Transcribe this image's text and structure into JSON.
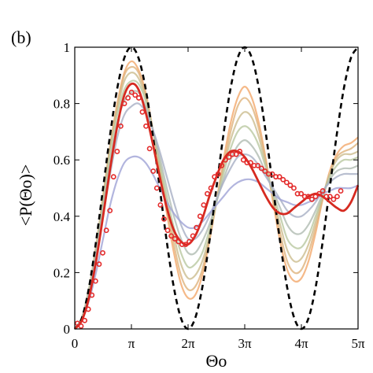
{
  "chart_data": {
    "type": "line",
    "panel_label": "(b)",
    "xlabel": "Θo",
    "ylabel": "<P(Θo)>",
    "xlim": [
      0,
      15.708
    ],
    "ylim": [
      0,
      1
    ],
    "x_ticks": [
      {
        "value": 0,
        "label": "0"
      },
      {
        "value": 3.1416,
        "label": "π"
      },
      {
        "value": 6.2832,
        "label": "2π"
      },
      {
        "value": 9.4248,
        "label": "3π"
      },
      {
        "value": 12.566,
        "label": "4π"
      },
      {
        "value": 15.708,
        "label": "5π"
      }
    ],
    "y_ticks": [
      {
        "value": 0,
        "label": "0"
      },
      {
        "value": 0.2,
        "label": "0.2"
      },
      {
        "value": 0.4,
        "label": "0.4"
      },
      {
        "value": 0.6,
        "label": "0.6"
      },
      {
        "value": 0.8,
        "label": "0.8"
      },
      {
        "value": 1,
        "label": "1"
      }
    ],
    "grid": false,
    "colors": {
      "dashed": "#000000",
      "highlight": "#d62a20",
      "points": "#e32b2b",
      "family_warm": "#f2a86a",
      "family_mid": "#b9c8a0",
      "family_cool": "#9fa3d6"
    },
    "series": [
      {
        "style": "dashed",
        "x": [
          0,
          0.3927,
          0.7854,
          1.1781,
          1.5708,
          1.9635,
          2.3562,
          2.7489,
          3.1416,
          3.5343,
          3.927,
          4.3197,
          4.7124,
          5.1051,
          5.4978,
          5.8905,
          6.2832,
          6.6759,
          7.0686,
          7.4613,
          7.854,
          8.2467,
          8.6394,
          9.0321,
          9.4248,
          9.8175,
          10.2102,
          10.6029,
          10.9956,
          11.3883,
          11.781,
          12.1737,
          12.566,
          12.9591,
          13.3518,
          13.7445,
          14.1372,
          14.5299,
          14.9226,
          15.3153,
          15.708
        ],
        "y": [
          0,
          0.038,
          0.146,
          0.309,
          0.5,
          0.691,
          0.854,
          0.962,
          1,
          0.962,
          0.854,
          0.691,
          0.5,
          0.309,
          0.146,
          0.038,
          0,
          0.038,
          0.146,
          0.309,
          0.5,
          0.691,
          0.854,
          0.962,
          1,
          0.962,
          0.854,
          0.691,
          0.5,
          0.309,
          0.146,
          0.038,
          0,
          0.038,
          0.146,
          0.309,
          0.5,
          0.691,
          0.854,
          0.962,
          1
        ]
      },
      {
        "style": "band",
        "x": [
          0,
          0.3927,
          0.7854,
          1.1781,
          1.5708,
          1.9635,
          2.3562,
          2.7489,
          3.1416,
          3.5343,
          3.927,
          4.3197,
          4.7124,
          5.1051,
          5.4978,
          5.8905,
          6.2832,
          6.6759,
          7.0686,
          7.4613,
          7.854,
          8.2467,
          8.6394,
          9.0321,
          9.4248,
          9.8175,
          10.2102,
          10.6029,
          10.9956,
          11.3883,
          11.781,
          12.1737,
          12.566,
          12.9591,
          13.3518,
          13.7445,
          14.1372,
          14.5299,
          14.9226,
          15.3153,
          15.708
        ],
        "y": [
          0,
          0.04,
          0.14,
          0.29,
          0.47,
          0.65,
          0.8,
          0.91,
          0.95,
          0.92,
          0.84,
          0.71,
          0.56,
          0.41,
          0.27,
          0.16,
          0.11,
          0.12,
          0.19,
          0.31,
          0.45,
          0.6,
          0.73,
          0.82,
          0.86,
          0.82,
          0.73,
          0.6,
          0.45,
          0.31,
          0.21,
          0.17,
          0.18,
          0.24,
          0.34,
          0.46,
          0.56,
          0.62,
          0.65,
          0.66,
          0.68
        ]
      },
      {
        "style": "band",
        "x": [
          0,
          0.3927,
          0.7854,
          1.1781,
          1.5708,
          1.9635,
          2.3562,
          2.7489,
          3.1416,
          3.5343,
          3.927,
          4.3197,
          4.7124,
          5.1051,
          5.4978,
          5.8905,
          6.2832,
          6.6759,
          7.0686,
          7.4613,
          7.854,
          8.2467,
          8.6394,
          9.0321,
          9.4248,
          9.8175,
          10.2102,
          10.6029,
          10.9956,
          11.3883,
          11.781,
          12.1737,
          12.566,
          12.9591,
          13.3518,
          13.7445,
          14.1372,
          14.5299,
          14.9226,
          15.3153,
          15.708
        ],
        "y": [
          0,
          0.04,
          0.14,
          0.29,
          0.47,
          0.65,
          0.79,
          0.9,
          0.93,
          0.91,
          0.83,
          0.71,
          0.57,
          0.43,
          0.3,
          0.19,
          0.14,
          0.15,
          0.21,
          0.32,
          0.45,
          0.58,
          0.7,
          0.79,
          0.82,
          0.79,
          0.71,
          0.59,
          0.46,
          0.34,
          0.24,
          0.2,
          0.21,
          0.27,
          0.36,
          0.46,
          0.55,
          0.61,
          0.63,
          0.64,
          0.66
        ]
      },
      {
        "style": "band",
        "x": [
          0,
          0.3927,
          0.7854,
          1.1781,
          1.5708,
          1.9635,
          2.3562,
          2.7489,
          3.1416,
          3.5343,
          3.927,
          4.3197,
          4.7124,
          5.1051,
          5.4978,
          5.8905,
          6.2832,
          6.6759,
          7.0686,
          7.4613,
          7.854,
          8.2467,
          8.6394,
          9.0321,
          9.4248,
          9.8175,
          10.2102,
          10.6029,
          10.9956,
          11.3883,
          11.781,
          12.1737,
          12.566,
          12.9591,
          13.3518,
          13.7445,
          14.1372,
          14.5299,
          14.9226,
          15.3153,
          15.708
        ],
        "y": [
          0,
          0.04,
          0.14,
          0.29,
          0.46,
          0.64,
          0.78,
          0.88,
          0.91,
          0.89,
          0.82,
          0.71,
          0.58,
          0.45,
          0.33,
          0.23,
          0.18,
          0.19,
          0.24,
          0.33,
          0.45,
          0.57,
          0.67,
          0.74,
          0.77,
          0.75,
          0.68,
          0.58,
          0.47,
          0.37,
          0.28,
          0.24,
          0.25,
          0.3,
          0.38,
          0.47,
          0.55,
          0.6,
          0.62,
          0.62,
          0.63
        ]
      },
      {
        "style": "band",
        "x": [
          0,
          0.3927,
          0.7854,
          1.1781,
          1.5708,
          1.9635,
          2.3562,
          2.7489,
          3.1416,
          3.5343,
          3.927,
          4.3197,
          4.7124,
          5.1051,
          5.4978,
          5.8905,
          6.2832,
          6.6759,
          7.0686,
          7.4613,
          7.854,
          8.2467,
          8.6394,
          9.0321,
          9.4248,
          9.8175,
          10.2102,
          10.6029,
          10.9956,
          11.3883,
          11.781,
          12.1737,
          12.566,
          12.9591,
          13.3518,
          13.7445,
          14.1372,
          14.5299,
          14.9226,
          15.3153,
          15.708
        ],
        "y": [
          0,
          0.04,
          0.14,
          0.28,
          0.45,
          0.62,
          0.76,
          0.85,
          0.88,
          0.87,
          0.81,
          0.71,
          0.59,
          0.47,
          0.36,
          0.27,
          0.22,
          0.23,
          0.27,
          0.35,
          0.45,
          0.55,
          0.64,
          0.7,
          0.72,
          0.7,
          0.65,
          0.57,
          0.48,
          0.4,
          0.32,
          0.29,
          0.29,
          0.33,
          0.4,
          0.47,
          0.54,
          0.58,
          0.6,
          0.6,
          0.61
        ]
      },
      {
        "style": "band",
        "x": [
          0,
          0.3927,
          0.7854,
          1.1781,
          1.5708,
          1.9635,
          2.3562,
          2.7489,
          3.1416,
          3.5343,
          3.927,
          4.3197,
          4.7124,
          5.1051,
          5.4978,
          5.8905,
          6.2832,
          6.6759,
          7.0686,
          7.4613,
          7.854,
          8.2467,
          8.6394,
          9.0321,
          9.4248,
          9.8175,
          10.2102,
          10.6029,
          10.9956,
          11.3883,
          11.781,
          12.1737,
          12.566,
          12.9591,
          13.3518,
          13.7445,
          14.1372,
          14.5299,
          14.9226,
          15.3153,
          15.708
        ],
        "y": [
          0,
          0.04,
          0.13,
          0.27,
          0.43,
          0.59,
          0.73,
          0.81,
          0.84,
          0.84,
          0.79,
          0.71,
          0.61,
          0.5,
          0.4,
          0.32,
          0.27,
          0.27,
          0.31,
          0.37,
          0.45,
          0.53,
          0.6,
          0.65,
          0.67,
          0.65,
          0.61,
          0.55,
          0.49,
          0.43,
          0.37,
          0.34,
          0.34,
          0.37,
          0.42,
          0.48,
          0.53,
          0.56,
          0.57,
          0.57,
          0.58
        ]
      },
      {
        "style": "band",
        "x": [
          0,
          0.3927,
          0.7854,
          1.1781,
          1.5708,
          1.9635,
          2.3562,
          2.7489,
          3.1416,
          3.5343,
          3.927,
          4.3197,
          4.7124,
          5.1051,
          5.4978,
          5.8905,
          6.2832,
          6.6759,
          7.0686,
          7.4613,
          7.854,
          8.2467,
          8.6394,
          9.0321,
          9.4248,
          9.8175,
          10.2102,
          10.6029,
          10.9956,
          11.3883,
          11.781,
          12.1737,
          12.566,
          12.9591,
          13.3518,
          13.7445,
          14.1372,
          14.5299,
          14.9226,
          15.3153,
          15.708
        ],
        "y": [
          0,
          0.03,
          0.12,
          0.25,
          0.4,
          0.55,
          0.68,
          0.76,
          0.79,
          0.8,
          0.77,
          0.71,
          0.63,
          0.54,
          0.45,
          0.37,
          0.32,
          0.32,
          0.35,
          0.4,
          0.46,
          0.52,
          0.57,
          0.61,
          0.62,
          0.61,
          0.58,
          0.54,
          0.5,
          0.46,
          0.42,
          0.4,
          0.4,
          0.42,
          0.45,
          0.49,
          0.52,
          0.54,
          0.55,
          0.55,
          0.55
        ]
      },
      {
        "style": "band",
        "x": [
          0,
          0.3927,
          0.7854,
          1.1781,
          1.5708,
          1.9635,
          2.3562,
          2.7489,
          3.1416,
          3.5343,
          3.927,
          4.3197,
          4.7124,
          5.1051,
          5.4978,
          5.8905,
          6.2832,
          6.6759,
          7.0686,
          7.4613,
          7.854,
          8.2467,
          8.6394,
          9.0321,
          9.4248,
          9.8175,
          10.2102,
          10.6029,
          10.9956,
          11.3883,
          11.781,
          12.1737,
          12.566,
          12.9591,
          13.3518,
          13.7445,
          14.1372,
          14.5299,
          14.9226,
          15.3153,
          15.708
        ],
        "y": [
          0,
          0.03,
          0.1,
          0.2,
          0.32,
          0.44,
          0.53,
          0.59,
          0.61,
          0.61,
          0.59,
          0.55,
          0.5,
          0.45,
          0.41,
          0.38,
          0.36,
          0.36,
          0.38,
          0.41,
          0.44,
          0.47,
          0.5,
          0.52,
          0.53,
          0.53,
          0.52,
          0.5,
          0.48,
          0.46,
          0.45,
          0.44,
          0.44,
          0.45,
          0.46,
          0.48,
          0.49,
          0.5,
          0.5,
          0.5,
          0.51
        ]
      },
      {
        "style": "highlight",
        "x": [
          0,
          0.3927,
          0.7854,
          1.1781,
          1.5708,
          1.9635,
          2.3562,
          2.7489,
          3.1416,
          3.5343,
          3.927,
          4.3197,
          4.7124,
          5.1051,
          5.4978,
          5.8905,
          6.2832,
          6.6759,
          7.0686,
          7.4613,
          7.854,
          8.2467,
          8.6394,
          9.0321,
          9.4248,
          9.8175,
          10.2102,
          10.6029,
          10.9956,
          11.3883,
          11.781,
          12.1737,
          12.566,
          12.9591,
          13.3518,
          13.7445,
          14.1372,
          14.5299,
          14.9226,
          15.3153,
          15.708
        ],
        "y": [
          0,
          0.03,
          0.11,
          0.24,
          0.4,
          0.57,
          0.72,
          0.83,
          0.87,
          0.85,
          0.77,
          0.66,
          0.54,
          0.43,
          0.35,
          0.31,
          0.3,
          0.33,
          0.39,
          0.47,
          0.54,
          0.6,
          0.63,
          0.63,
          0.61,
          0.57,
          0.52,
          0.47,
          0.43,
          0.41,
          0.41,
          0.43,
          0.45,
          0.47,
          0.48,
          0.47,
          0.45,
          0.43,
          0.42,
          0.45,
          0.51
        ]
      },
      {
        "style": "points",
        "x": [
          0.15,
          0.35,
          0.55,
          0.75,
          0.95,
          1.15,
          1.35,
          1.55,
          1.75,
          1.95,
          2.15,
          2.35,
          2.55,
          2.75,
          2.95,
          3.15,
          3.35,
          3.55,
          3.75,
          3.95,
          4.15,
          4.35,
          4.55,
          4.75,
          4.95,
          5.15,
          5.35,
          5.55,
          5.75,
          5.95,
          6.15,
          6.35,
          6.55,
          6.75,
          6.95,
          7.15,
          7.35,
          7.55,
          7.75,
          7.95,
          8.15,
          8.35,
          8.55,
          8.75,
          8.95,
          9.15,
          9.35,
          9.55,
          9.75,
          9.95,
          10.15,
          10.35,
          10.55,
          10.75,
          10.95,
          11.15,
          11.35,
          11.55,
          11.75,
          11.95,
          12.15,
          12.35,
          12.55,
          12.75,
          12.95,
          13.15,
          13.35,
          13.55,
          13.75,
          13.95,
          14.15,
          14.35,
          14.55,
          14.75
        ],
        "y": [
          0.02,
          0.01,
          0.03,
          0.07,
          0.12,
          0.17,
          0.23,
          0.27,
          0.35,
          0.42,
          0.54,
          0.63,
          0.72,
          0.8,
          0.82,
          0.84,
          0.83,
          0.82,
          0.77,
          0.72,
          0.64,
          0.56,
          0.5,
          0.44,
          0.39,
          0.35,
          0.33,
          0.32,
          0.31,
          0.3,
          0.3,
          0.31,
          0.33,
          0.36,
          0.4,
          0.44,
          0.48,
          0.5,
          0.54,
          0.55,
          0.58,
          0.6,
          0.61,
          0.62,
          0.62,
          0.63,
          0.6,
          0.59,
          0.59,
          0.58,
          0.58,
          0.57,
          0.56,
          0.55,
          0.55,
          0.54,
          0.54,
          0.53,
          0.52,
          0.51,
          0.5,
          0.48,
          0.48,
          0.47,
          0.47,
          0.46,
          0.47,
          0.48,
          0.49,
          0.47,
          0.47,
          0.46,
          0.47,
          0.49
        ]
      }
    ]
  }
}
